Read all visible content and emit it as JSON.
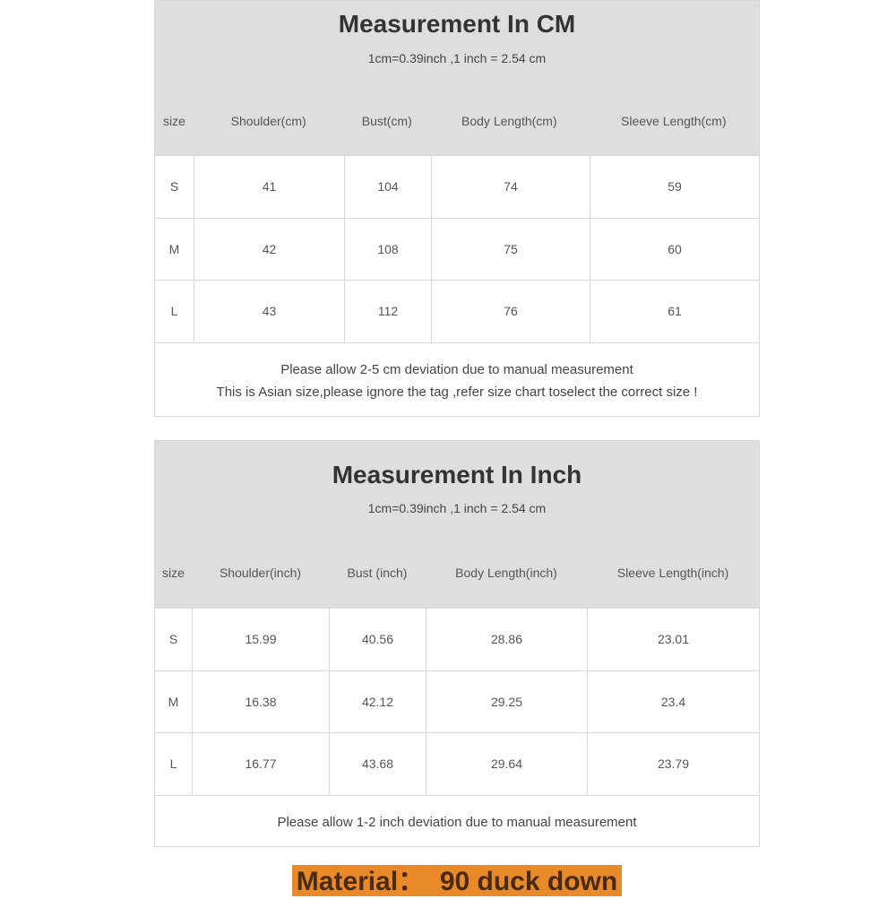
{
  "cm_table": {
    "title": "Measurement In CM",
    "conversion": "1cm=0.39inch ,1 inch = 2.54 cm",
    "headers": [
      "size",
      "Shoulder(cm)",
      "Bust(cm)",
      "Body Length(cm)",
      "Sleeve Length(cm)"
    ],
    "rows": [
      [
        "S",
        "41",
        "104",
        "74",
        "59"
      ],
      [
        "M",
        "42",
        "108",
        "75",
        "60"
      ],
      [
        "L",
        "43",
        "112",
        "76",
        "61"
      ]
    ],
    "notes": [
      "Please allow 2-5 cm deviation due to manual measurement",
      "This is Asian size,please ignore the tag ,refer size chart toselect the correct size !"
    ]
  },
  "inch_table": {
    "title": "Measurement In Inch",
    "conversion": "1cm=0.39inch ,1 inch = 2.54 cm",
    "headers": [
      "size",
      "Shoulder(inch)",
      "Bust (inch)",
      "Body Length(inch)",
      "Sleeve Length(inch)"
    ],
    "rows": [
      [
        "S",
        "15.99",
        "40.56",
        "28.86",
        "23.01"
      ],
      [
        "M",
        "16.38",
        "42.12",
        "29.25",
        "23.4"
      ],
      [
        "L",
        "16.77",
        "43.68",
        "29.64",
        "23.79"
      ]
    ],
    "notes": [
      "Please allow 1-2 inch deviation due to manual measurement"
    ]
  },
  "material": "Material：  90 duck down",
  "colors": {
    "header_bg": "#dedede",
    "material_bg": "#e98a2a",
    "material_text": "#4a2a10"
  }
}
